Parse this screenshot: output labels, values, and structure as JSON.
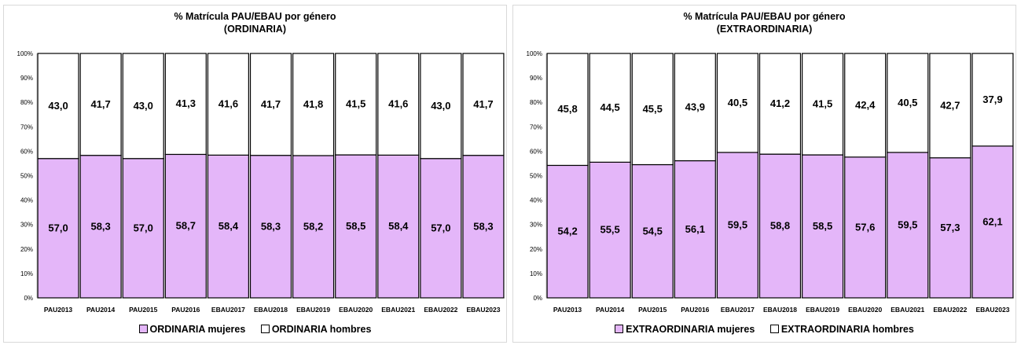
{
  "colors": {
    "mujeres": "#e4b6f9",
    "hombres": "#ffffff",
    "border": "#000000",
    "tick_text": "#000000"
  },
  "chart_data": [
    {
      "type": "bar",
      "stacked": true,
      "percent": true,
      "title": "% Matrícula PAU/EBAU por género",
      "subtitle": "(ORDINARIA)",
      "categories": [
        "PAU2013",
        "PAU2014",
        "PAU2015",
        "PAU2016",
        "EBAU2017",
        "EBAU2018",
        "EBAU2019",
        "EBAU2020",
        "EBAU2021",
        "EBAU2022",
        "EBAU2023"
      ],
      "series": [
        {
          "name": "ORDINARIA mujeres",
          "values": [
            57.0,
            58.3,
            57.0,
            58.7,
            58.4,
            58.3,
            58.2,
            58.5,
            58.4,
            57.0,
            58.3
          ],
          "labels": [
            "57,0",
            "58,3",
            "57,0",
            "58,7",
            "58,4",
            "58,3",
            "58,2",
            "58,5",
            "58,4",
            "57,0",
            "58,3"
          ]
        },
        {
          "name": "ORDINARIA hombres",
          "values": [
            43.0,
            41.7,
            43.0,
            41.3,
            41.6,
            41.7,
            41.8,
            41.5,
            41.6,
            43.0,
            41.7
          ],
          "labels": [
            "43,0",
            "41,7",
            "43,0",
            "41,3",
            "41,6",
            "41,7",
            "41,8",
            "41,5",
            "41,6",
            "43,0",
            "41,7"
          ]
        }
      ],
      "yticks": [
        "0%",
        "10%",
        "20%",
        "30%",
        "40%",
        "50%",
        "60%",
        "70%",
        "80%",
        "90%",
        "100%"
      ],
      "ylim": [
        0,
        100
      ],
      "legend": "bottom",
      "grid": false
    },
    {
      "type": "bar",
      "stacked": true,
      "percent": true,
      "title": "% Matrícula PAU/EBAU por género",
      "subtitle": "(EXTRAORDINARIA)",
      "categories": [
        "PAU2013",
        "PAU2014",
        "PAU2015",
        "PAU2016",
        "EBAU2017",
        "EBAU2018",
        "EBAU2019",
        "EBAU2020",
        "EBAU2021",
        "EBAU2022",
        "EBAU2023"
      ],
      "series": [
        {
          "name": "EXTRAORDINARIA mujeres",
          "values": [
            54.2,
            55.5,
            54.5,
            56.1,
            59.5,
            58.8,
            58.5,
            57.6,
            59.5,
            57.3,
            62.1
          ],
          "labels": [
            "54,2",
            "55,5",
            "54,5",
            "56,1",
            "59,5",
            "58,8",
            "58,5",
            "57,6",
            "59,5",
            "57,3",
            "62,1"
          ]
        },
        {
          "name": "EXTRAORDINARIA hombres",
          "values": [
            45.8,
            44.5,
            45.5,
            43.9,
            40.5,
            41.2,
            41.5,
            42.4,
            40.5,
            42.7,
            37.9
          ],
          "labels": [
            "45,8",
            "44,5",
            "45,5",
            "43,9",
            "40,5",
            "41,2",
            "41,5",
            "42,4",
            "40,5",
            "42,7",
            "37,9"
          ]
        }
      ],
      "yticks": [
        "0%",
        "10%",
        "20%",
        "30%",
        "40%",
        "50%",
        "60%",
        "70%",
        "80%",
        "90%",
        "100%"
      ],
      "ylim": [
        0,
        100
      ],
      "legend": "bottom",
      "grid": false
    }
  ]
}
